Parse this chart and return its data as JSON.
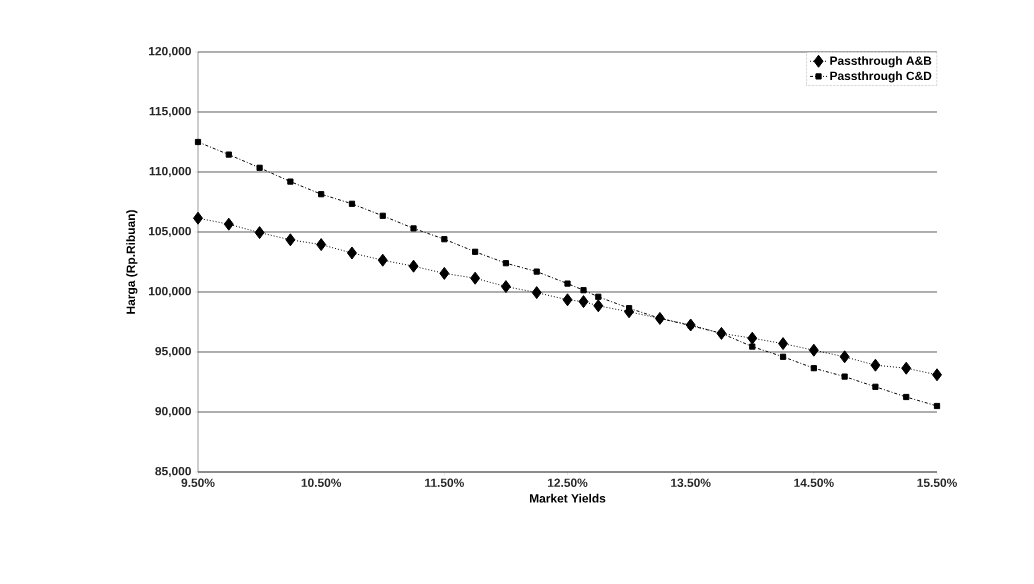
{
  "chart_data": {
    "type": "line",
    "xlabel": "Market Yields",
    "ylabel": "Harga (Rp.Ribuan)",
    "series": [
      {
        "name": "Passthrough A&B",
        "color": "#000000",
        "marker": "diamond",
        "line_style": "dotted",
        "x": [
          9.5,
          9.75,
          10.0,
          10.25,
          10.5,
          10.75,
          11.0,
          11.25,
          11.5,
          11.75,
          12.0,
          12.25,
          12.5,
          12.63,
          12.75,
          13.0,
          13.25,
          13.5,
          13.75,
          14.0,
          14.25,
          14.5,
          14.75,
          15.0,
          15.25,
          15.5
        ],
        "values": [
          106150,
          105650,
          104950,
          104350,
          103950,
          103250,
          102650,
          102150,
          101550,
          101150,
          100450,
          99950,
          99350,
          99200,
          98850,
          98350,
          97800,
          97250,
          96550,
          96150,
          95700,
          95150,
          94600,
          93900,
          93650,
          93100
        ]
      },
      {
        "name": "Passthrough C&D",
        "color": "#000000",
        "marker": "square",
        "line_style": "dashdotted",
        "x": [
          9.5,
          9.75,
          10.0,
          10.25,
          10.5,
          10.75,
          11.0,
          11.25,
          11.5,
          11.75,
          12.0,
          12.25,
          12.5,
          12.63,
          12.75,
          13.0,
          13.25,
          13.5,
          13.75,
          14.0,
          14.25,
          14.5,
          14.75,
          15.0,
          15.25,
          15.5
        ],
        "values": [
          112500,
          111450,
          110350,
          109200,
          108150,
          107350,
          106350,
          105300,
          104400,
          103350,
          102400,
          101700,
          100700,
          100150,
          99600,
          98650,
          97800,
          97200,
          96550,
          95450,
          94600,
          93650,
          92950,
          92100,
          91250,
          90500
        ]
      }
    ],
    "xlim": [
      9.5,
      15.5
    ],
    "xticks": [
      {
        "value": 9.5,
        "label": "9.50%"
      },
      {
        "value": 10.5,
        "label": "10.50%"
      },
      {
        "value": 11.5,
        "label": "11.50%"
      },
      {
        "value": 12.5,
        "label": "12.50%"
      },
      {
        "value": 13.5,
        "label": "13.50%"
      },
      {
        "value": 14.5,
        "label": "14.50%"
      },
      {
        "value": 15.5,
        "label": "15.50%"
      }
    ],
    "ylim": [
      85000,
      120000
    ],
    "yticks": [
      {
        "value": 85000,
        "label": "85,000"
      },
      {
        "value": 90000,
        "label": "90,000"
      },
      {
        "value": 95000,
        "label": "95,000"
      },
      {
        "value": 100000,
        "label": "100,000"
      },
      {
        "value": 105000,
        "label": "105,000"
      },
      {
        "value": 110000,
        "label": "110,000"
      },
      {
        "value": 115000,
        "label": "115,000"
      },
      {
        "value": 120000,
        "label": "120,000"
      }
    ],
    "grid": "y",
    "legend": "top right"
  }
}
